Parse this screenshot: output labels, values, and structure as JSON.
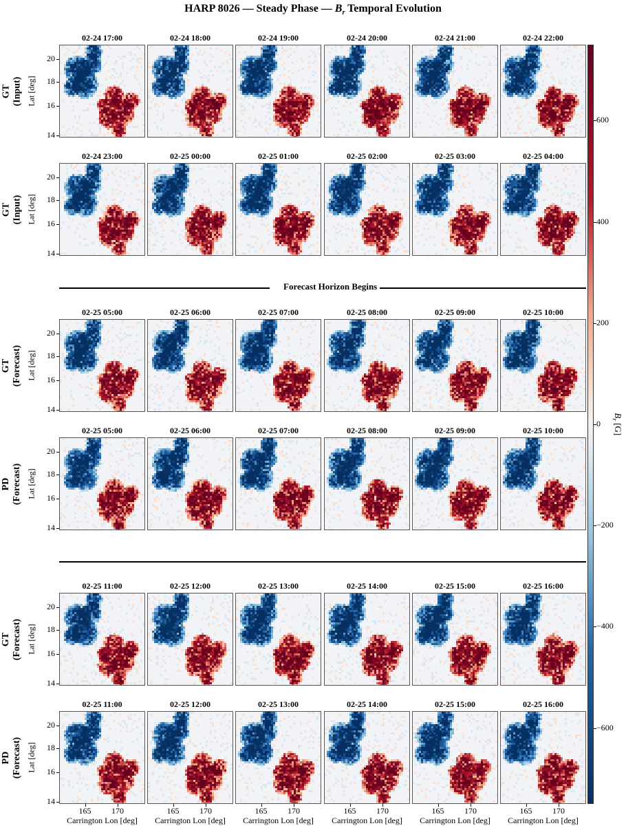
{
  "title": "HARP 8026 — Steady Phase — B_r Temporal Evolution",
  "title_parts": {
    "before": "HARP 8026 — Steady Phase — ",
    "symbol": "B",
    "subscript": "r",
    "after": " Temporal Evolution"
  },
  "separator_text": "Forecast Horizon Begins",
  "y_axis_label": "Lat [deg]",
  "x_axis_label": "Carrington Lon [deg]",
  "y_ticks": [
    "20",
    "18",
    "16",
    "14"
  ],
  "x_ticks": [
    "165",
    "170"
  ],
  "colorbar": {
    "label_symbol": "B",
    "label_subscript": "r",
    "label_unit": " [G]",
    "ticks": [
      "600",
      "400",
      "200",
      "0",
      "−200",
      "−400",
      "−600"
    ],
    "range": [
      -750,
      750
    ],
    "colormap": "RdBu_r",
    "colors": {
      "max": "#67001f",
      "mid": "#f7f7f7",
      "min": "#053061"
    }
  },
  "rows": [
    {
      "label_line1": "GT",
      "label_line2": "(Input)",
      "times": [
        "02-24 17:00",
        "02-24 18:00",
        "02-24 19:00",
        "02-24 20:00",
        "02-24 21:00",
        "02-24 22:00"
      ]
    },
    {
      "label_line1": "GT",
      "label_line2": "(Input)",
      "times": [
        "02-24 23:00",
        "02-25 00:00",
        "02-25 01:00",
        "02-25 02:00",
        "02-25 03:00",
        "02-25 04:00"
      ]
    },
    {
      "label_line1": "GT",
      "label_line2": "(Forecast)",
      "times": [
        "02-25 05:00",
        "02-25 06:00",
        "02-25 07:00",
        "02-25 08:00",
        "02-25 09:00",
        "02-25 10:00"
      ]
    },
    {
      "label_line1": "PD",
      "label_line2": "(Forecast)",
      "times": [
        "02-25 05:00",
        "02-25 06:00",
        "02-25 07:00",
        "02-25 08:00",
        "02-25 09:00",
        "02-25 10:00"
      ]
    },
    {
      "label_line1": "GT",
      "label_line2": "(Forecast)",
      "times": [
        "02-25 11:00",
        "02-25 12:00",
        "02-25 13:00",
        "02-25 14:00",
        "02-25 15:00",
        "02-25 16:00"
      ]
    },
    {
      "label_line1": "PD",
      "label_line2": "(Forecast)",
      "times": [
        "02-25 11:00",
        "02-25 12:00",
        "02-25 13:00",
        "02-25 14:00",
        "02-25 15:00",
        "02-25 16:00"
      ]
    }
  ]
}
